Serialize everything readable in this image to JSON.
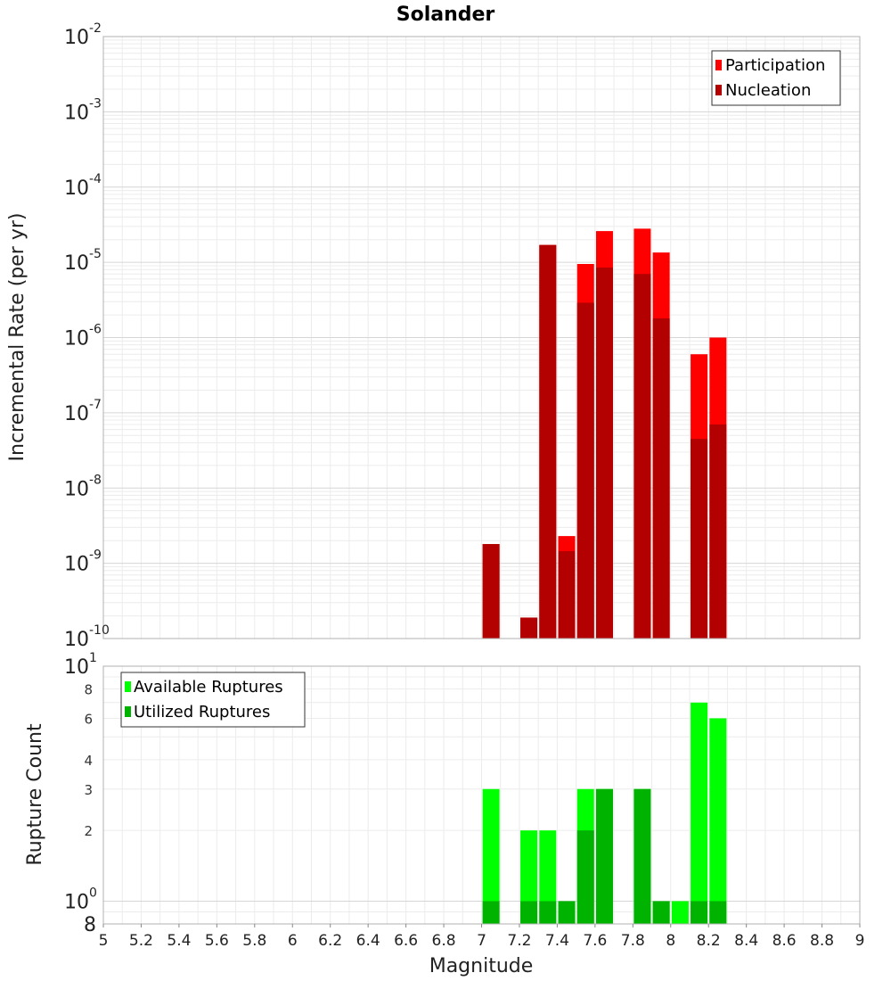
{
  "chart_data": [
    {
      "type": "bar",
      "title": "Solander",
      "xlabel": "",
      "ylabel": "Incremental Rate (per yr)",
      "yscale": "log",
      "ylim": [
        1e-10,
        0.01
      ],
      "xlim": [
        5,
        9
      ],
      "grid": true,
      "legend_position": "top-right",
      "y_tick_labels": [
        {
          "base": "10",
          "exp": "-10",
          "value": 1e-10
        },
        {
          "base": "10",
          "exp": "-9",
          "value": 1e-09
        },
        {
          "base": "10",
          "exp": "-8",
          "value": 1e-08
        },
        {
          "base": "10",
          "exp": "-7",
          "value": 1e-07
        },
        {
          "base": "10",
          "exp": "-6",
          "value": 1e-06
        },
        {
          "base": "10",
          "exp": "-5",
          "value": 1e-05
        },
        {
          "base": "10",
          "exp": "-4",
          "value": 0.0001
        },
        {
          "base": "10",
          "exp": "-3",
          "value": 0.001
        },
        {
          "base": "10",
          "exp": "-2",
          "value": 0.01
        }
      ],
      "series": [
        {
          "name": "Participation",
          "color": "#ff0000",
          "x": [
            7.05,
            7.25,
            7.35,
            7.45,
            7.55,
            7.65,
            7.85,
            7.95,
            8.15,
            8.25
          ],
          "values": [
            1.8e-09,
            1.9e-10,
            1.7e-05,
            2.3e-09,
            9.5e-06,
            2.6e-05,
            2.8e-05,
            1.35e-05,
            6e-07,
            1e-06
          ]
        },
        {
          "name": "Nucleation",
          "color": "#b30000",
          "x": [
            7.05,
            7.25,
            7.35,
            7.45,
            7.55,
            7.65,
            7.85,
            7.95,
            8.15,
            8.25
          ],
          "values": [
            1.8e-09,
            1.9e-10,
            1.7e-05,
            1.45e-09,
            2.9e-06,
            8.5e-06,
            7e-06,
            1.8e-06,
            4.5e-08,
            7e-08
          ]
        }
      ]
    },
    {
      "type": "bar",
      "title": "",
      "xlabel": "Magnitude",
      "ylabel": "Rupture Count",
      "yscale": "log",
      "ylim": [
        0.8,
        10
      ],
      "xlim": [
        5,
        9
      ],
      "grid": true,
      "legend_position": "top-left",
      "x_ticks": [
        "5",
        "5.2",
        "5.4",
        "5.6",
        "5.8",
        "6",
        "6.2",
        "6.4",
        "6.6",
        "6.8",
        "7",
        "7.2",
        "7.4",
        "7.6",
        "7.8",
        "8",
        "8.2",
        "8.4",
        "8.6",
        "8.8",
        "9"
      ],
      "y_tick_labels_minor": [
        {
          "label": "2",
          "value": 2
        },
        {
          "label": "3",
          "value": 3
        },
        {
          "label": "4",
          "value": 4
        },
        {
          "label": "6",
          "value": 6
        },
        {
          "label": "8",
          "value": 8
        }
      ],
      "y_tick_labels_major": [
        {
          "base": "10",
          "exp": "0",
          "value": 1
        },
        {
          "base": "10",
          "exp": "1",
          "value": 10
        }
      ],
      "y_tick_bottom": {
        "label": "8",
        "value": 0.8
      },
      "series": [
        {
          "name": "Available Ruptures",
          "color": "#00ff00",
          "x": [
            7.05,
            7.25,
            7.35,
            7.45,
            7.55,
            7.65,
            7.85,
            7.95,
            8.05,
            8.15,
            8.25
          ],
          "values": [
            3,
            2,
            2,
            1,
            3,
            3,
            3,
            1,
            1,
            7,
            6
          ]
        },
        {
          "name": "Utilized Ruptures",
          "color": "#00b300",
          "x": [
            7.05,
            7.25,
            7.35,
            7.45,
            7.55,
            7.65,
            7.85,
            7.95,
            8.05,
            8.15,
            8.25
          ],
          "values": [
            1,
            1,
            1,
            1,
            2,
            3,
            3,
            1,
            0,
            1,
            1
          ]
        }
      ]
    }
  ]
}
